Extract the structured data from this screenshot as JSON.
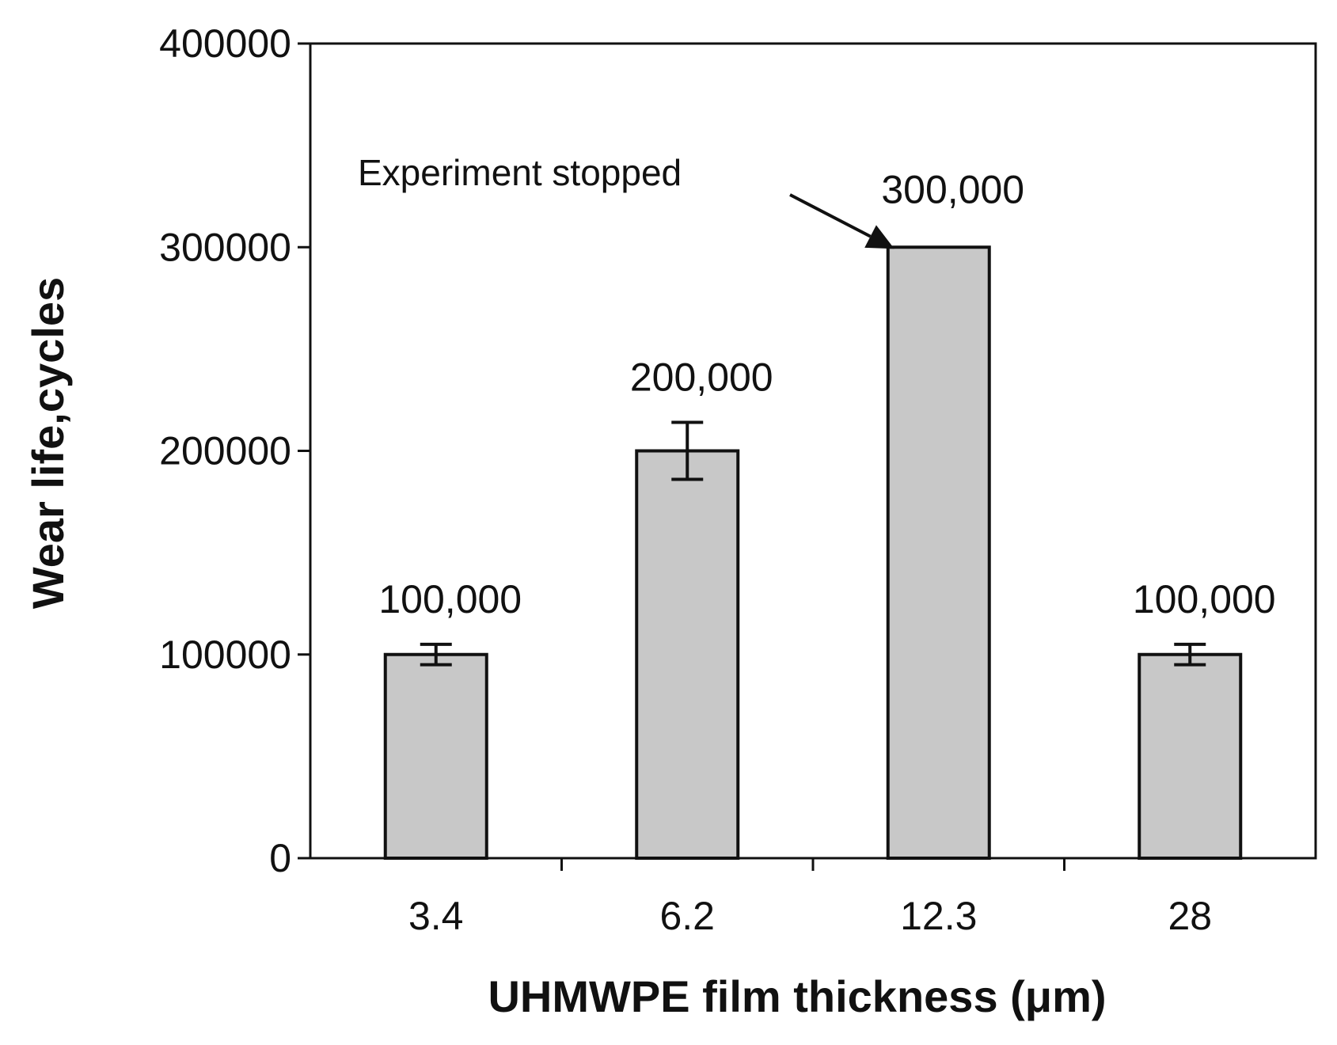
{
  "chart_data": {
    "type": "bar",
    "xlabel": "UHMWPE film thickness (μm)",
    "ylabel": "Wear life,cycles",
    "ylim": [
      0,
      400000
    ],
    "yticks": [
      0,
      100000,
      200000,
      300000,
      400000
    ],
    "ytick_labels": [
      "0",
      "100000",
      "200000",
      "300000",
      "400000"
    ],
    "categories": [
      "3.4",
      "6.2",
      "12.3",
      "28"
    ],
    "values": [
      100000,
      200000,
      300000,
      100000
    ],
    "errors": [
      5000,
      14000,
      0,
      5000
    ],
    "data_labels": [
      "100,000",
      "200,000",
      "300,000",
      "100,000"
    ],
    "grid": false,
    "annotations": [
      {
        "text": "Experiment stopped",
        "target_category": "12.3",
        "target_value": 300000
      }
    ],
    "colors": {
      "bar_fill": "#c8c8c8",
      "bar_stroke": "#111111",
      "axis": "#111111"
    }
  }
}
